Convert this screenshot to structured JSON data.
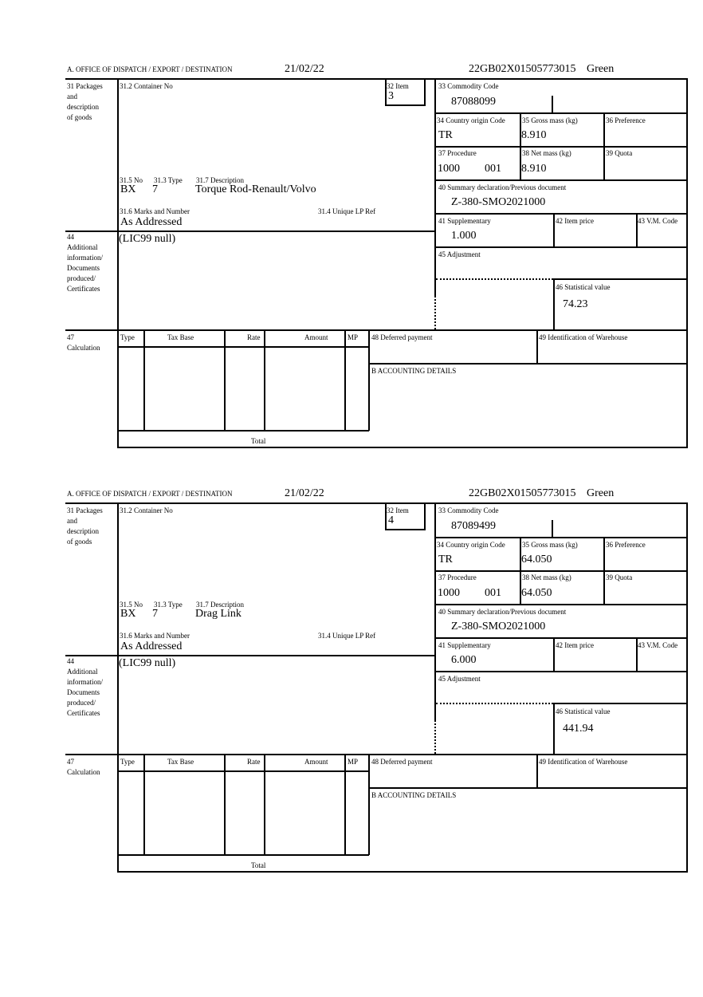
{
  "forms": [
    {
      "header": {
        "office": "A.  OFFICE OF DISPATCH / EXPORT / DESTINATION",
        "date": "21/02/22",
        "reference": "22GB02X01505773015",
        "route": "Green"
      },
      "labels": {
        "packages": [
          "31 Packages",
          "and",
          "description",
          "of goods"
        ],
        "container": "31.2 Container No",
        "item": "32 Item",
        "no": "31.5 No",
        "type": "31.3 Type",
        "description": "31.7 Description",
        "marks": "31.6 Marks and Number",
        "unique_ref": "31.4 Unique LP Ref",
        "commodity": "33 Commodity Code",
        "country": "34 Country origin Code",
        "gross": "35 Gross mass (kg)",
        "preference": "36 Preference",
        "procedure": "37 Procedure",
        "net": "38 Net mass (kg)",
        "quota": "39 Quota",
        "summary": "40 Summary declaration/Previous document",
        "supplementary": "41 Supplementary",
        "item_price": "42 Item price",
        "vm_code": "43 V.M. Code",
        "adjustment": "45 Adjustment",
        "statistical": "46 Statistical value",
        "additional": [
          "44",
          "Additional",
          "information/",
          "Documents",
          "produced/",
          "Certificates"
        ],
        "calculation": [
          "47",
          "Calculation"
        ],
        "calc_cols": [
          "Type",
          "Tax Base",
          "Rate",
          "Amount",
          "MP"
        ],
        "total": "Total",
        "deferred": "48 Deferred payment",
        "warehouse": "49 Identification of Warehouse",
        "accounting": "B ACCOUNTING DETAILS"
      },
      "values": {
        "item": "3",
        "no": "BX",
        "type": "7",
        "description": "Torque Rod-Renault/Volvo",
        "marks": "As Addressed",
        "additional": "(LIC99 null)",
        "commodity": "87088099",
        "country": "TR",
        "gross": "8.910",
        "procedure": "1000",
        "procedure_ext": "001",
        "net": "8.910",
        "summary": "Z-380-SMO2021000",
        "supplementary": "1.000",
        "statistical": "74.23"
      }
    },
    {
      "header": {
        "office": "A.  OFFICE OF DISPATCH / EXPORT / DESTINATION",
        "date": "21/02/22",
        "reference": "22GB02X01505773015",
        "route": "Green"
      },
      "labels": {
        "packages": [
          "31 Packages",
          "and",
          "description",
          "of goods"
        ],
        "container": "31.2 Container No",
        "item": "32 Item",
        "no": "31.5 No",
        "type": "31.3 Type",
        "description": "31.7 Description",
        "marks": "31.6 Marks and Number",
        "unique_ref": "31.4 Unique LP Ref",
        "commodity": "33 Commodity Code",
        "country": "34 Country origin Code",
        "gross": "35 Gross mass (kg)",
        "preference": "36 Preference",
        "procedure": "37 Procedure",
        "net": "38 Net mass (kg)",
        "quota": "39 Quota",
        "summary": "40 Summary declaration/Previous document",
        "supplementary": "41 Supplementary",
        "item_price": "42 Item price",
        "vm_code": "43 V.M. Code",
        "adjustment": "45 Adjustment",
        "statistical": "46 Statistical value",
        "additional": [
          "44",
          "Additional",
          "information/",
          "Documents",
          "produced/",
          "Certificates"
        ],
        "calculation": [
          "47",
          "Calculation"
        ],
        "calc_cols": [
          "Type",
          "Tax Base",
          "Rate",
          "Amount",
          "MP"
        ],
        "total": "Total",
        "deferred": "48 Deferred payment",
        "warehouse": "49 Identification of Warehouse",
        "accounting": "B ACCOUNTING DETAILS"
      },
      "values": {
        "item": "4",
        "no": "BX",
        "type": "7",
        "description": "Drag Link",
        "marks": "As Addressed",
        "additional": "(LIC99 null)",
        "commodity": "87089499",
        "country": "TR",
        "gross": "64.050",
        "procedure": "1000",
        "procedure_ext": "001",
        "net": "64.050",
        "summary": "Z-380-SMO2021000",
        "supplementary": "6.000",
        "statistical": "441.94"
      }
    }
  ]
}
